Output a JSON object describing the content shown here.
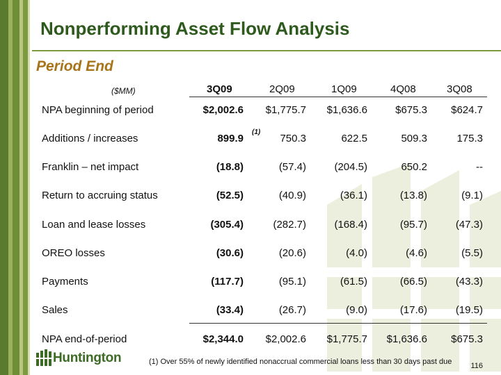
{
  "title": "Nonperforming Asset Flow Analysis",
  "subtitle": "Period End",
  "table": {
    "unit_label": "($MM)",
    "columns": [
      "3Q09",
      "2Q09",
      "1Q09",
      "4Q08",
      "3Q08"
    ],
    "rows": [
      {
        "label": "NPA beginning of period",
        "values": [
          "$2,002.6",
          "$1,775.7",
          "$1,636.6",
          "$675.3",
          "$624.7"
        ]
      },
      {
        "label": "Additions / increases",
        "values": [
          "899.9",
          "750.3",
          "622.5",
          "509.3",
          "175.3"
        ],
        "note": "(1)"
      },
      {
        "label": "Franklin – net impact",
        "values": [
          "(18.8)",
          "(57.4)",
          "(204.5)",
          "650.2",
          "--"
        ]
      },
      {
        "label": "Return to accruing status",
        "values": [
          "(52.5)",
          "(40.9)",
          "(36.1)",
          "(13.8)",
          "(9.1)"
        ]
      },
      {
        "label": "Loan and lease losses",
        "values": [
          "(305.4)",
          "(282.7)",
          "(168.4)",
          "(95.7)",
          "(47.3)"
        ]
      },
      {
        "label": "OREO losses",
        "values": [
          "(30.6)",
          "(20.6)",
          "(4.0)",
          "(4.6)",
          "(5.5)"
        ]
      },
      {
        "label": "Payments",
        "values": [
          "(117.7)",
          "(95.1)",
          "(61.5)",
          "(66.5)",
          "(43.3)"
        ]
      },
      {
        "label": "Sales",
        "values": [
          "(33.4)",
          "(26.7)",
          "(9.0)",
          "(17.6)",
          "(19.5)"
        ]
      },
      {
        "label": "NPA end-of-period",
        "values": [
          "$2,344.0",
          "$2,002.6",
          "$1,775.7",
          "$1,636.6",
          "$675.3"
        ]
      }
    ]
  },
  "footnote": "(1)  Over 55% of newly identified nonaccrual commercial loans less than 30 days past due",
  "logo_text": "Huntington",
  "page_number": "116",
  "colors": {
    "title": "#2e5a1e",
    "subtitle": "#a8741a",
    "accent": "#7e9a40"
  }
}
